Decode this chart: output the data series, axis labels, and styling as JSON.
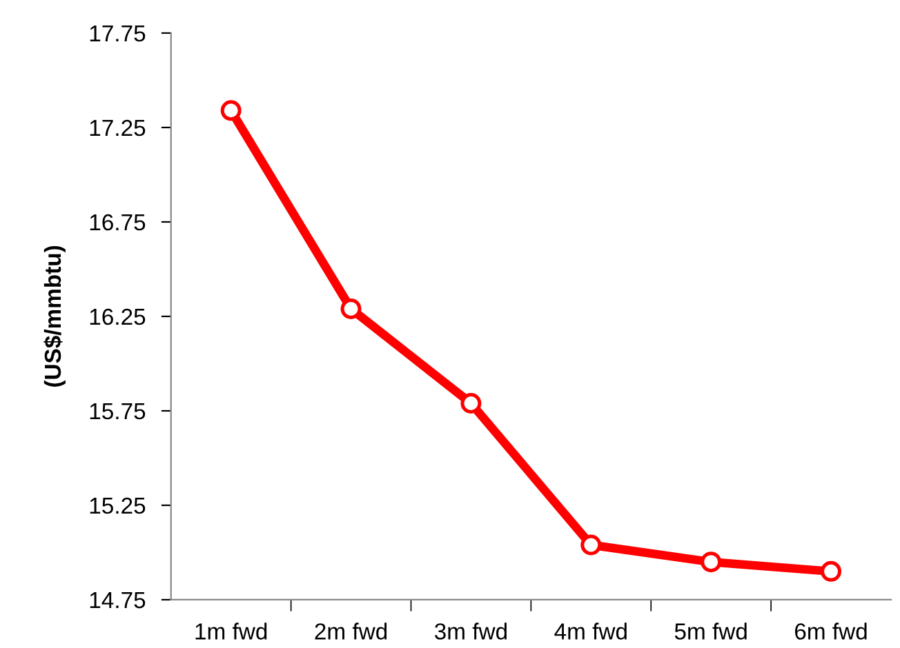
{
  "chart_data": {
    "type": "line",
    "ylabel": "(US$/mmbtu)",
    "categories": [
      "1m fwd",
      "2m fwd",
      "3m fwd",
      "4m fwd",
      "5m fwd",
      "6m fwd"
    ],
    "series": [
      {
        "color": "#ff0000",
        "values": [
          17.34,
          16.29,
          15.79,
          15.04,
          14.95,
          14.9
        ]
      }
    ],
    "ylim": [
      14.75,
      17.75
    ],
    "yticks": [
      14.75,
      15.25,
      15.75,
      16.25,
      16.75,
      17.25,
      17.75
    ],
    "marker": "circle",
    "line_style": "solid",
    "grid": false,
    "legend": false
  }
}
